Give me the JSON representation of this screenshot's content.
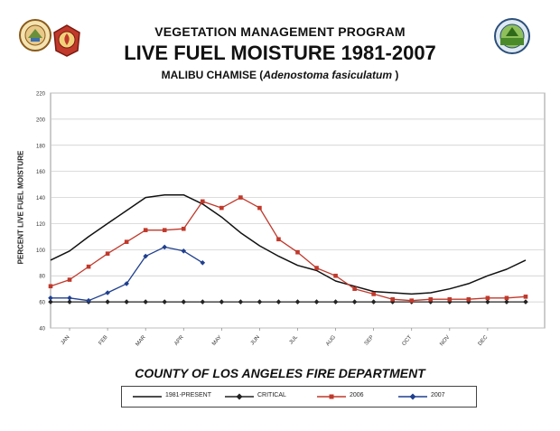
{
  "header": {
    "line1": "VEGETATION MANAGEMENT PROGRAM",
    "line2": "LIVE FUEL MOISTURE 1981-2007",
    "line3_prefix": "MALIBU CHAMISE (",
    "line3_species": "Adenostoma fasiculatum",
    "line3_suffix": " )"
  },
  "footer": {
    "department": "COUNTY OF LOS ANGELES FIRE DEPARTMENT"
  },
  "logos": [
    "county-seal-icon",
    "fire-department-badge-icon",
    "program-seal-icon"
  ],
  "chart_data": {
    "type": "line",
    "ylabel": "PERCENT LIVE FUEL MOISTURE",
    "ylim": [
      40,
      220
    ],
    "yticks": [
      40,
      60,
      80,
      100,
      120,
      140,
      160,
      180,
      200,
      220
    ],
    "ytick_labels": [
      "40",
      "60",
      "80",
      "100",
      "120",
      "140",
      "160",
      "180",
      "200",
      "220"
    ],
    "x_range": [
      0,
      26
    ],
    "month_ticks": [
      1,
      3,
      5,
      7,
      9,
      11,
      13,
      15,
      17,
      19,
      21,
      23
    ],
    "month_labels": [
      "JAN",
      "FEB",
      "MAR",
      "APR",
      "MAY",
      "JUN",
      "JUL",
      "AUG",
      "SEP",
      "OCT",
      "NOV",
      "DEC"
    ],
    "grid": true,
    "legend_position": "bottom",
    "series": [
      {
        "name": "1981-PRESENT",
        "color": "#111111",
        "marker": "none",
        "x": [
          0,
          1,
          2,
          3,
          4,
          5,
          6,
          7,
          8,
          9,
          10,
          11,
          12,
          13,
          14,
          15,
          16,
          17,
          18,
          19,
          20,
          21,
          22,
          23,
          24,
          25
        ],
        "values": [
          92,
          99,
          110,
          120,
          130,
          140,
          142,
          142,
          135,
          125,
          113,
          103,
          95,
          88,
          84,
          76,
          72,
          68,
          67,
          66,
          67,
          70,
          74,
          80,
          85,
          92
        ]
      },
      {
        "name": "CRITICAL",
        "color": "#222222",
        "marker": "diamond",
        "x": [
          0,
          1,
          2,
          3,
          4,
          5,
          6,
          7,
          8,
          9,
          10,
          11,
          12,
          13,
          14,
          15,
          16,
          17,
          18,
          19,
          20,
          21,
          22,
          23,
          24,
          25
        ],
        "values": [
          60,
          60,
          60,
          60,
          60,
          60,
          60,
          60,
          60,
          60,
          60,
          60,
          60,
          60,
          60,
          60,
          60,
          60,
          60,
          60,
          60,
          60,
          60,
          60,
          60,
          60
        ]
      },
      {
        "name": "2006",
        "color": "#c0392b",
        "marker": "square",
        "x": [
          0,
          1,
          2,
          3,
          4,
          5,
          6,
          7,
          8,
          9,
          10,
          11,
          12,
          13,
          14,
          15,
          16,
          17,
          18,
          19,
          20,
          21,
          22,
          23,
          24,
          25
        ],
        "values": [
          72,
          77,
          87,
          97,
          106,
          115,
          115,
          116,
          137,
          132,
          140,
          132,
          108,
          98,
          86,
          80,
          70,
          66,
          62,
          61,
          62,
          62,
          62,
          63,
          63,
          64
        ]
      },
      {
        "name": "2007",
        "color": "#1f3f8f",
        "marker": "diamond",
        "x": [
          0,
          1,
          2,
          3,
          4,
          5,
          6,
          7,
          8
        ],
        "values": [
          63,
          63,
          61,
          67,
          74,
          95,
          102,
          99,
          90
        ]
      }
    ]
  }
}
